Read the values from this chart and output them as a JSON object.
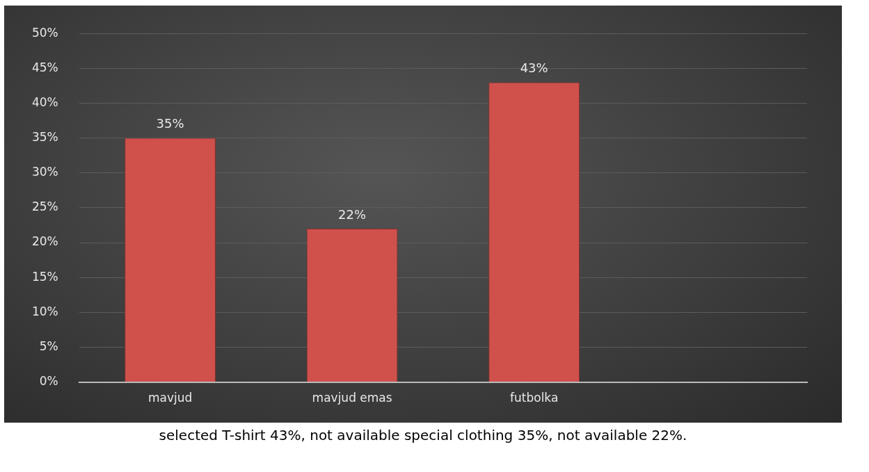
{
  "chart_data": {
    "type": "bar",
    "categories": [
      "mavjud",
      "mavjud emas",
      "futbolka",
      null
    ],
    "values": [
      35,
      22,
      43,
      null
    ],
    "value_labels": [
      "35%",
      "22%",
      "43%",
      null
    ],
    "color": "#d0514c",
    "ylim": [
      0,
      50
    ],
    "yticks": [
      {
        "value": 0,
        "label": "0%"
      },
      {
        "value": 5,
        "label": "5%"
      },
      {
        "value": 10,
        "label": "10%"
      },
      {
        "value": 15,
        "label": "15%"
      },
      {
        "value": 20,
        "label": "20%"
      },
      {
        "value": 25,
        "label": "25%"
      },
      {
        "value": 30,
        "label": "30%"
      },
      {
        "value": 35,
        "label": "35%"
      },
      {
        "value": 40,
        "label": "40%"
      },
      {
        "value": 45,
        "label": "45%"
      },
      {
        "value": 50,
        "label": "50%"
      }
    ],
    "grid": "y",
    "annotations": [
      "selected T-shirt 43%, not available special clothing 35%, not available 22%."
    ]
  }
}
